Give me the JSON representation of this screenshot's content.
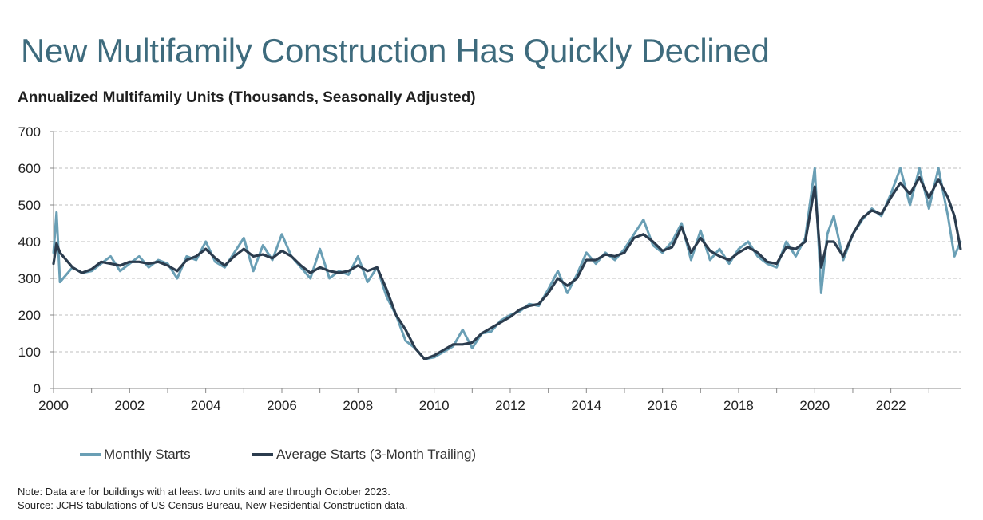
{
  "header": {
    "title": "New Multifamily Construction Has Quickly Declined",
    "subtitle": "Annualized Multifamily  Units (Thousands, Seasonally Adjusted)"
  },
  "notes": {
    "note": "Note: Data are for buildings with at least two units and are through October 2023.",
    "source": "Source: JCHS tabulations of US Census Bureau, New Residential Construction data."
  },
  "colors": {
    "monthly": "#6a9fb5",
    "average": "#2b3c4e",
    "title": "#3e6b7d",
    "grid": "#bfbfbf"
  },
  "chart_data": {
    "type": "line",
    "ylim": [
      0,
      700
    ],
    "yticks": [
      0,
      100,
      200,
      300,
      400,
      500,
      600,
      700
    ],
    "xlim": [
      2000,
      2023.833
    ],
    "xtick_labels": [
      "2000",
      "2002",
      "2004",
      "2006",
      "2008",
      "2010",
      "2012",
      "2014",
      "2016",
      "2018",
      "2020",
      "2022"
    ],
    "grid": "horizontal dashed",
    "legend_position": "bottom",
    "series": [
      {
        "name": "Monthly Starts",
        "x": [
          2000.0,
          2000.08,
          2000.17,
          2000.5,
          2000.75,
          2001.0,
          2001.25,
          2001.5,
          2001.75,
          2002.0,
          2002.25,
          2002.5,
          2002.75,
          2003.0,
          2003.25,
          2003.5,
          2003.75,
          2004.0,
          2004.25,
          2004.5,
          2004.75,
          2005.0,
          2005.25,
          2005.5,
          2005.75,
          2006.0,
          2006.25,
          2006.5,
          2006.75,
          2007.0,
          2007.25,
          2007.5,
          2007.75,
          2008.0,
          2008.25,
          2008.5,
          2008.75,
          2009.0,
          2009.25,
          2009.5,
          2009.75,
          2010.0,
          2010.25,
          2010.5,
          2010.75,
          2011.0,
          2011.25,
          2011.5,
          2011.75,
          2012.0,
          2012.25,
          2012.5,
          2012.75,
          2013.0,
          2013.25,
          2013.5,
          2013.75,
          2014.0,
          2014.25,
          2014.5,
          2014.75,
          2015.0,
          2015.25,
          2015.5,
          2015.75,
          2016.0,
          2016.25,
          2016.5,
          2016.75,
          2017.0,
          2017.25,
          2017.5,
          2017.75,
          2018.0,
          2018.25,
          2018.5,
          2018.75,
          2019.0,
          2019.25,
          2019.5,
          2019.75,
          2020.0,
          2020.17,
          2020.33,
          2020.5,
          2020.75,
          2021.0,
          2021.25,
          2021.5,
          2021.75,
          2022.0,
          2022.25,
          2022.5,
          2022.75,
          2023.0,
          2023.25,
          2023.5,
          2023.67,
          2023.83
        ],
        "values": [
          370,
          480,
          290,
          330,
          315,
          320,
          340,
          360,
          320,
          340,
          360,
          330,
          350,
          340,
          300,
          360,
          350,
          400,
          345,
          330,
          370,
          410,
          320,
          390,
          350,
          420,
          360,
          330,
          300,
          380,
          300,
          320,
          310,
          360,
          290,
          330,
          250,
          200,
          130,
          110,
          80,
          85,
          100,
          115,
          160,
          110,
          150,
          155,
          185,
          200,
          210,
          230,
          225,
          270,
          320,
          260,
          310,
          370,
          340,
          370,
          350,
          380,
          420,
          460,
          390,
          370,
          400,
          450,
          350,
          430,
          350,
          380,
          340,
          380,
          400,
          360,
          340,
          330,
          400,
          360,
          410,
          600,
          260,
          420,
          470,
          350,
          420,
          460,
          490,
          470,
          530,
          600,
          500,
          600,
          490,
          600,
          470,
          360,
          400
        ]
      },
      {
        "name": "Average Starts (3-Month Trailing)",
        "x": [
          2000.0,
          2000.08,
          2000.17,
          2000.5,
          2000.75,
          2001.0,
          2001.25,
          2001.5,
          2001.75,
          2002.0,
          2002.25,
          2002.5,
          2002.75,
          2003.0,
          2003.25,
          2003.5,
          2003.75,
          2004.0,
          2004.25,
          2004.5,
          2004.75,
          2005.0,
          2005.25,
          2005.5,
          2005.75,
          2006.0,
          2006.25,
          2006.5,
          2006.75,
          2007.0,
          2007.25,
          2007.5,
          2007.75,
          2008.0,
          2008.25,
          2008.5,
          2008.75,
          2009.0,
          2009.25,
          2009.5,
          2009.75,
          2010.0,
          2010.25,
          2010.5,
          2010.75,
          2011.0,
          2011.25,
          2011.5,
          2011.75,
          2012.0,
          2012.25,
          2012.5,
          2012.75,
          2013.0,
          2013.25,
          2013.5,
          2013.75,
          2014.0,
          2014.25,
          2014.5,
          2014.75,
          2015.0,
          2015.25,
          2015.5,
          2015.75,
          2016.0,
          2016.25,
          2016.5,
          2016.75,
          2017.0,
          2017.25,
          2017.5,
          2017.75,
          2018.0,
          2018.25,
          2018.5,
          2018.75,
          2019.0,
          2019.25,
          2019.5,
          2019.75,
          2020.0,
          2020.17,
          2020.33,
          2020.5,
          2020.75,
          2021.0,
          2021.25,
          2021.5,
          2021.75,
          2022.0,
          2022.25,
          2022.5,
          2022.75,
          2023.0,
          2023.25,
          2023.5,
          2023.67,
          2023.83
        ],
        "values": [
          340,
          395,
          370,
          330,
          315,
          325,
          345,
          340,
          335,
          345,
          345,
          340,
          345,
          335,
          320,
          350,
          360,
          380,
          355,
          335,
          360,
          380,
          360,
          365,
          355,
          375,
          360,
          335,
          315,
          330,
          320,
          315,
          320,
          335,
          320,
          330,
          270,
          200,
          160,
          110,
          80,
          90,
          105,
          120,
          120,
          125,
          150,
          165,
          180,
          195,
          215,
          225,
          230,
          260,
          300,
          280,
          300,
          350,
          350,
          365,
          360,
          370,
          410,
          420,
          400,
          375,
          385,
          440,
          370,
          410,
          375,
          360,
          350,
          370,
          385,
          370,
          345,
          340,
          385,
          380,
          400,
          550,
          330,
          400,
          400,
          360,
          420,
          465,
          485,
          475,
          520,
          560,
          530,
          575,
          520,
          570,
          520,
          470,
          380
        ]
      }
    ]
  }
}
